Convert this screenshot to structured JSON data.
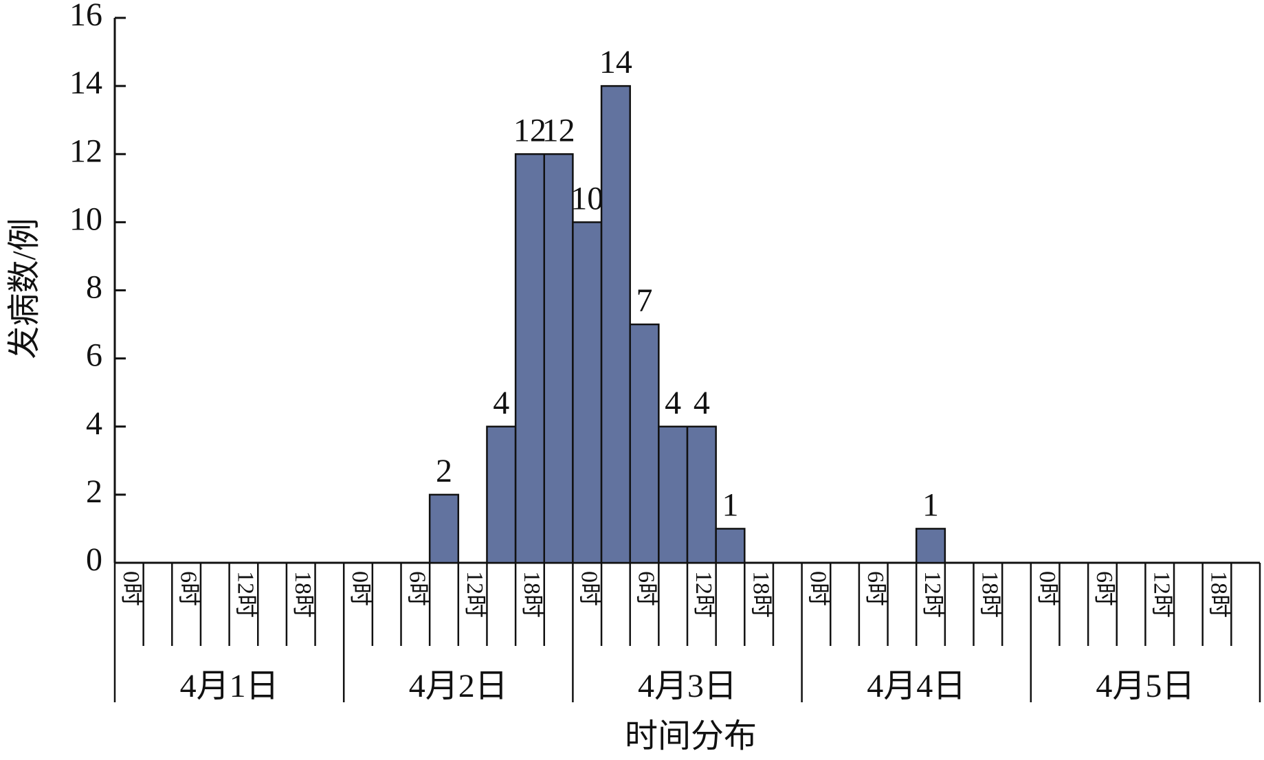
{
  "chart_data": {
    "type": "bar",
    "xlabel": "时间分布",
    "ylabel": "发病数/例",
    "categories": [
      "0时",
      null,
      "6时",
      null,
      "12时",
      null,
      "18时",
      null,
      "0时",
      null,
      "6时",
      null,
      "12时",
      null,
      "18时",
      null,
      "0时",
      null,
      "6时",
      null,
      "12时",
      null,
      "18时",
      null,
      "0时",
      null,
      "6时",
      null,
      "12时",
      null,
      "18时",
      null,
      "0时",
      null,
      "6时",
      null,
      "12时",
      null,
      "18时",
      null
    ],
    "days": [
      "4月1日",
      "4月2日",
      "4月3日",
      "4月4日",
      "4月5日"
    ],
    "values": [
      null,
      null,
      null,
      null,
      null,
      null,
      null,
      null,
      null,
      null,
      null,
      2,
      null,
      4,
      12,
      12,
      10,
      14,
      7,
      4,
      4,
      1,
      null,
      null,
      null,
      null,
      null,
      null,
      1,
      null,
      null,
      null,
      null,
      null,
      null,
      null,
      null,
      null,
      null,
      null
    ],
    "color": "#62739f",
    "ylim": [
      0,
      16
    ],
    "yticks": [
      0,
      2,
      4,
      6,
      8,
      10,
      12,
      14,
      16
    ]
  }
}
